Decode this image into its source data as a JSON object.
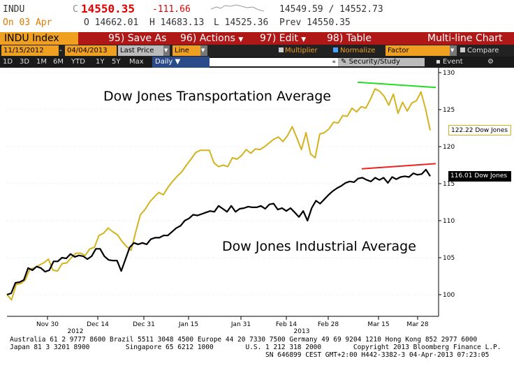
{
  "header": {
    "ticker": "INDU",
    "last_prefix": "C",
    "last_price": "14550.35",
    "change": "-111.66",
    "bid_ask": "14549.59 / 14552.73",
    "date_label": "On 03 Apr",
    "open": "O 14662.01",
    "high": "H 14683.13",
    "low": "L 14525.36",
    "prev": "Prev 14550.35"
  },
  "toolbar": {
    "index_label": "INDU Index",
    "save_as": "95) Save As",
    "actions": "96) Actions",
    "edit": "97) Edit",
    "table": "98) Table",
    "chart_type": "Multi-line Chart"
  },
  "options": {
    "start_date": "11/15/2012",
    "end_date": "04/04/2013",
    "field": "Last Price",
    "style": "Line",
    "multiplier": "Multiplier",
    "normalize": "Normalize",
    "factor": "Factor",
    "compare": "Compare"
  },
  "periods": {
    "items": [
      "1D",
      "3D",
      "1M",
      "6M",
      "YTD",
      "1Y",
      "5Y",
      "Max"
    ],
    "frequency": "Daily",
    "security_study": "Security/Study",
    "event": "Event"
  },
  "footer": {
    "line1": "Australia 61 2 9777 8600 Brazil 5511 3048 4500 Europe 44 20 7330 7500 Germany 49 69 9204 1210 Hong Kong 852 2977 6000",
    "line2": "Japan 81 3 3201 8900         Singapore 65 6212 1000        U.S. 1 212 318 2000        Copyright 2013 Bloomberg Finance L.P.",
    "line3": "SN 646899 CEST GMT+2:00 H442-3382-3 04-Apr-2013 07:23:05"
  },
  "colors": {
    "transport": "#d4b21e",
    "industrial": "#000000",
    "trend_transport": "#22dd22",
    "trend_industrial": "#ee2222",
    "toolbar_red": "#b01818",
    "index_orange": "#f0a020"
  },
  "chart_data": {
    "type": "line",
    "title": "",
    "xlabel": "",
    "ylabel": "",
    "ylim": [
      97,
      130
    ],
    "y_ticks": [
      100,
      105,
      110,
      115,
      120,
      125,
      130
    ],
    "x_ticks": [
      "Nov 30",
      "Dec 14",
      "Dec 31",
      "Jan 15",
      "Jan 31",
      "Feb 14",
      "Feb 28",
      "Mar 15",
      "Mar 28"
    ],
    "x_year_labels": [
      "2012",
      "2013"
    ],
    "annotations": [
      "Dow Jones Transportation Average",
      "Dow Jones Industrial Average"
    ],
    "series": [
      {
        "name": "Dow Jones",
        "last_label": "122.22",
        "values": [
          100,
          99.3,
          101.4,
          101.5,
          102,
          103.5,
          103.6,
          104,
          104.3,
          104.8,
          103.3,
          103.2,
          104.2,
          104.3,
          105,
          105.6,
          105.6,
          105.3,
          106.2,
          106.4,
          108,
          108.3,
          109,
          108.5,
          108.1,
          107.2,
          106.5,
          106,
          108.5,
          110.8,
          111.5,
          112.5,
          113.2,
          113.8,
          113.5,
          114.5,
          115.3,
          116,
          116.6,
          117.5,
          118.3,
          119.2,
          119.5,
          119.5,
          119.5,
          117.8,
          117.3,
          117.5,
          117.3,
          118.5,
          118.3,
          118.8,
          119.6,
          119.1,
          119.7,
          119.6,
          120,
          120.5,
          121,
          121.3,
          120.7,
          121.5,
          122.7,
          121.2,
          119.6,
          121.9,
          119,
          118.5,
          121.7,
          121.9,
          122.4,
          123.3,
          123.2,
          124.2,
          124.1,
          125.2,
          124.7,
          125.4,
          125.2,
          126.4,
          127.8,
          127.5,
          126.8,
          125.6,
          127.1,
          124.5,
          126,
          124.8,
          125.9,
          126.2,
          127.4,
          125.1,
          122.2
        ]
      },
      {
        "name": "Dow Jones",
        "last_label": "116.01",
        "values": [
          100,
          100.2,
          101.6,
          101.7,
          102,
          103.6,
          103.3,
          103.8,
          103.6,
          103.1,
          103.3,
          104.5,
          104.5,
          105,
          104.9,
          105.5,
          105.1,
          105.3,
          105.2,
          104.8,
          105.2,
          106.2,
          106.2,
          105.2,
          104.7,
          104.6,
          104.6,
          103.2,
          104.8,
          106.4,
          107,
          106.8,
          107,
          106.8,
          107.5,
          107.7,
          107.7,
          108,
          108,
          108.5,
          109,
          109.3,
          110,
          110.3,
          110.8,
          110.7,
          110.9,
          111.1,
          111.3,
          111.2,
          112,
          111.6,
          111.2,
          112,
          111.2,
          111.6,
          111.7,
          111.9,
          111.8,
          111.8,
          112,
          111.6,
          112.2,
          112.3,
          111.5,
          111.7,
          111.3,
          111.7,
          111.1,
          110.5,
          111.3,
          110,
          111.7,
          112.7,
          112.3,
          112.9,
          113.5,
          114,
          114.4,
          114.7,
          115.1,
          115.3,
          115.2,
          115.7,
          115.8,
          115.5,
          115.3,
          115.8,
          115.5,
          115.8,
          115.1,
          115.9,
          115.6,
          115.9,
          116,
          115.9,
          116.4,
          116.2,
          116.3,
          116.9,
          116
        ]
      }
    ],
    "trend_lines": [
      {
        "series": "Dow Jones Transportation Average",
        "from": [
          125.6,
          128.7
        ],
        "to": [
          128.0,
          128.0
        ]
      },
      {
        "series": "Dow Jones Industrial Average",
        "from": [
          116.7,
          117.0
        ],
        "to": [
          117.4,
          117.7
        ]
      }
    ]
  }
}
